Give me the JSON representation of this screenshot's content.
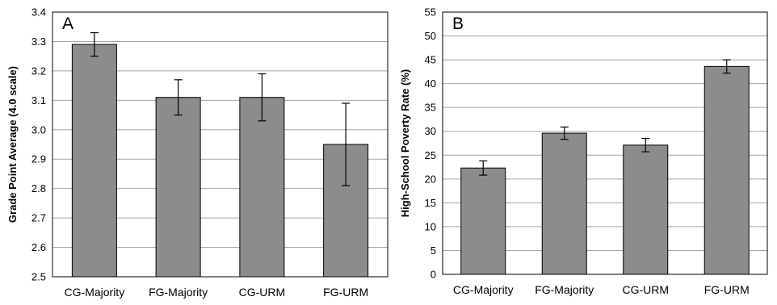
{
  "chart_data": [
    {
      "type": "bar",
      "panel_label": "A",
      "ylabel": "Grade Point Average (4.0 scale)",
      "xlabel": "",
      "categories": [
        "CG-Majority",
        "FG-Majority",
        "CG-URM",
        "FG-URM"
      ],
      "values": [
        3.29,
        3.11,
        3.11,
        2.95
      ],
      "error": [
        0.04,
        0.06,
        0.08,
        0.14
      ],
      "ylim": [
        2.5,
        3.4
      ],
      "yticks": [
        2.5,
        2.6,
        2.7,
        2.8,
        2.9,
        3.0,
        3.1,
        3.2,
        3.3,
        3.4
      ],
      "ytick_labels": [
        "2.5",
        "2.6",
        "2.7",
        "2.8",
        "2.9",
        "3.0",
        "3.1",
        "3.2",
        "3.3",
        "3.4"
      ],
      "grid": true,
      "bar_color": "#8c8c8c"
    },
    {
      "type": "bar",
      "panel_label": "B",
      "ylabel": "High-School Poverty Rate (%)",
      "xlabel": "",
      "categories": [
        "CG-Majority",
        "FG-Majority",
        "CG-URM",
        "FG-URM"
      ],
      "values": [
        22.3,
        29.6,
        27.1,
        43.6
      ],
      "error": [
        1.5,
        1.3,
        1.4,
        1.4
      ],
      "ylim": [
        0,
        55
      ],
      "yticks": [
        0,
        5,
        10,
        15,
        20,
        25,
        30,
        35,
        40,
        45,
        50,
        55
      ],
      "ytick_labels": [
        "0",
        "5",
        "10",
        "15",
        "20",
        "25",
        "30",
        "35",
        "40",
        "45",
        "50",
        "55"
      ],
      "grid": true,
      "bar_color": "#8c8c8c"
    }
  ]
}
